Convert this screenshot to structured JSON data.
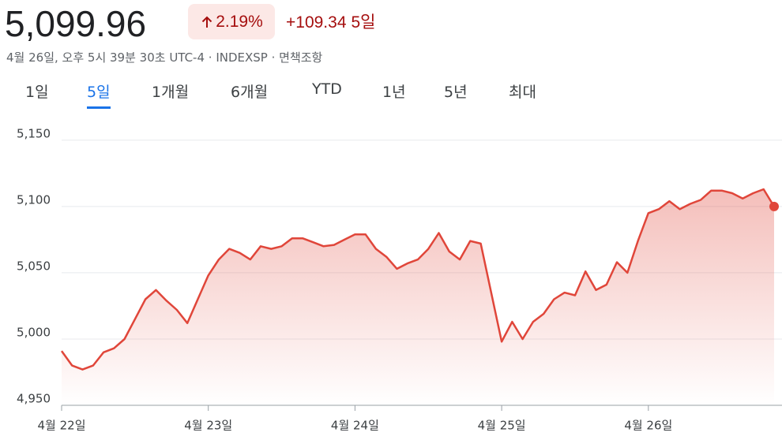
{
  "header": {
    "price": "5,099.96",
    "change_percent": "2.19%",
    "change": "+109.34",
    "period": "5일",
    "timestamp": "4월 26일, 오후 5시 39분 30초 UTC-4 · INDEXSP · 면책조항"
  },
  "tabs": {
    "items": [
      "1일",
      "5일",
      "1개월",
      "6개월",
      "YTD",
      "1년",
      "5년",
      "최대"
    ],
    "selected": 1
  },
  "chart_data": {
    "type": "line",
    "color": "#e0463a",
    "grid": true,
    "x": [
      0,
      1,
      2,
      3,
      4,
      5,
      6,
      7,
      8,
      9,
      10,
      11,
      12,
      13,
      14,
      15,
      16,
      17,
      18,
      19,
      20,
      21,
      22,
      23,
      24,
      25,
      26,
      27,
      28,
      29,
      30,
      31,
      32,
      33,
      34,
      35,
      36,
      37,
      38,
      39,
      40,
      42,
      43,
      44,
      45,
      46,
      47,
      48,
      49,
      50,
      51,
      52,
      53,
      54,
      55,
      56,
      57,
      58,
      59,
      60,
      61,
      62,
      63,
      64,
      65,
      66,
      67,
      68
    ],
    "values": [
      4991,
      4980,
      4977,
      4980,
      4990,
      4993,
      5000,
      5015,
      5030,
      5037,
      5029,
      5022,
      5012,
      5030,
      5048,
      5060,
      5068,
      5065,
      5060,
      5070,
      5068,
      5070,
      5076,
      5076,
      5073,
      5070,
      5071,
      5075,
      5079,
      5079,
      5068,
      5062,
      5053,
      5057,
      5060,
      5068,
      5080,
      5066,
      5060,
      5074,
      5072,
      4998,
      5013,
      5000,
      5013,
      5019,
      5030,
      5035,
      5033,
      5051,
      5037,
      5041,
      5058,
      5050,
      5074,
      5095,
      5098,
      5104,
      5098,
      5102,
      5105,
      5112,
      5112,
      5110,
      5106,
      5110,
      5113,
      5100
    ],
    "xlim": [
      0,
      68
    ],
    "ylim": [
      4950,
      5160
    ],
    "xticks": [
      {
        "value": 0,
        "label": "4월 22일"
      },
      {
        "value": 14,
        "label": "4월 23일"
      },
      {
        "value": 28,
        "label": "4월 24일"
      },
      {
        "value": 42,
        "label": "4월 25일"
      },
      {
        "value": 56,
        "label": "4월 26일"
      }
    ],
    "yticks": [
      {
        "value": 4950,
        "label": "4,950"
      },
      {
        "value": 5000,
        "label": "5,000"
      },
      {
        "value": 5050,
        "label": "5,050"
      },
      {
        "value": 5100,
        "label": "5,100"
      },
      {
        "value": 5150,
        "label": "5,150"
      }
    ]
  }
}
